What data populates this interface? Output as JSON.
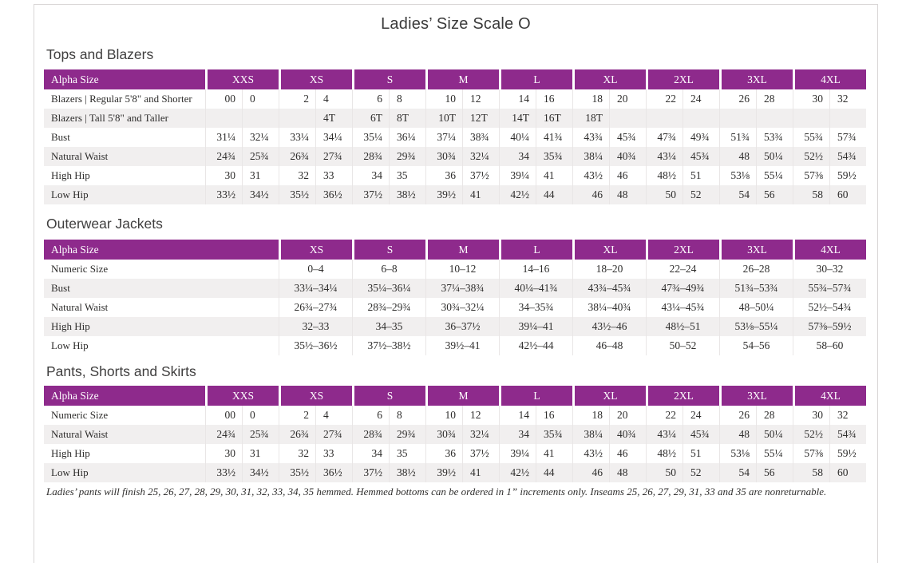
{
  "page_title": "Ladies’ Size Scale O",
  "colors": {
    "accent_purple": "#8e2a8c",
    "row_alt_gray": "#f1efef",
    "page_border_gray": "#d9d6d6"
  },
  "footnote": "Ladies’ pants will finish 25, 26, 27, 28, 29, 30, 31, 32, 33, 34, 35 hemmed. Hemmed bottoms can be ordered in 1” increments only. Inseams 25, 26, 27, 29, 31, 33 and 35 are nonreturnable.",
  "tables": [
    {
      "name": "tops-and-blazers",
      "section_title": "Tops and Blazers",
      "split_columns": true,
      "header": {
        "label": "Alpha Size",
        "groups": [
          "XXS",
          "XS",
          "S",
          "M",
          "L",
          "XL",
          "2XL",
          "3XL",
          "4XL"
        ]
      },
      "rows": [
        {
          "label": "Blazers  |  Regular 5'8\" and Shorter",
          "values": [
            "00",
            "0",
            "2",
            "4",
            "6",
            "8",
            "10",
            "12",
            "14",
            "16",
            "18",
            "20",
            "22",
            "24",
            "26",
            "28",
            "30",
            "32"
          ]
        },
        {
          "label": "Blazers  |  Tall 5'8\" and Taller",
          "values": [
            "",
            "",
            "",
            "4T",
            "6T",
            "8T",
            "10T",
            "12T",
            "14T",
            "16T",
            "18T",
            "",
            "",
            "",
            "",
            "",
            "",
            ""
          ]
        },
        {
          "label": "Bust",
          "values": [
            "31¼",
            "32¼",
            "33¼",
            "34¼",
            "35¼",
            "36¼",
            "37¼",
            "38¾",
            "40¼",
            "41¾",
            "43¾",
            "45¾",
            "47¾",
            "49¾",
            "51¾",
            "53¾",
            "55¾",
            "57¾"
          ]
        },
        {
          "label": "Natural Waist",
          "values": [
            "24¾",
            "25¾",
            "26¾",
            "27¾",
            "28¾",
            "29¾",
            "30¾",
            "32¼",
            "34",
            "35¾",
            "38¼",
            "40¾",
            "43¼",
            "45¾",
            "48",
            "50¼",
            "52½",
            "54¾"
          ]
        },
        {
          "label": "High Hip",
          "values": [
            "30",
            "31",
            "32",
            "33",
            "34",
            "35",
            "36",
            "37½",
            "39¼",
            "41",
            "43½",
            "46",
            "48½",
            "51",
            "53⅛",
            "55¼",
            "57⅜",
            "59½"
          ]
        },
        {
          "label": "Low Hip",
          "values": [
            "33½",
            "34½",
            "35½",
            "36½",
            "37½",
            "38½",
            "39½",
            "41",
            "42½",
            "44",
            "46",
            "48",
            "50",
            "52",
            "54",
            "56",
            "58",
            "60"
          ]
        }
      ]
    },
    {
      "name": "outerwear-jackets",
      "section_title": "Outerwear Jackets",
      "split_columns": false,
      "header": {
        "label": "Alpha Size",
        "groups": [
          "XS",
          "S",
          "M",
          "L",
          "XL",
          "2XL",
          "3XL",
          "4XL"
        ]
      },
      "rows": [
        {
          "label": "Numeric Size",
          "values": [
            "0–4",
            "6–8",
            "10–12",
            "14–16",
            "18–20",
            "22–24",
            "26–28",
            "30–32"
          ]
        },
        {
          "label": "Bust",
          "values": [
            "33¼–34¼",
            "35¼–36¼",
            "37¼–38¾",
            "40¼–41¾",
            "43¾–45¾",
            "47¾–49¾",
            "51¾–53¾",
            "55¾–57¾"
          ]
        },
        {
          "label": "Natural Waist",
          "values": [
            "26¾–27¾",
            "28¾–29¾",
            "30¾–32¼",
            "34–35¾",
            "38¼–40¾",
            "43¼–45¾",
            "48–50¼",
            "52½–54¾"
          ]
        },
        {
          "label": "High Hip",
          "values": [
            "32–33",
            "34–35",
            "36–37½",
            "39¼–41",
            "43½–46",
            "48½–51",
            "53⅛–55¼",
            "57⅜–59½"
          ]
        },
        {
          "label": "Low Hip",
          "values": [
            "35½–36½",
            "37½–38½",
            "39½–41",
            "42½–44",
            "46–48",
            "50–52",
            "54–56",
            "58–60"
          ]
        }
      ]
    },
    {
      "name": "pants-shorts-and-skirts",
      "section_title": "Pants, Shorts and Skirts",
      "split_columns": true,
      "header": {
        "label": "Alpha Size",
        "groups": [
          "XXS",
          "XS",
          "S",
          "M",
          "L",
          "XL",
          "2XL",
          "3XL",
          "4XL"
        ]
      },
      "rows": [
        {
          "label": "Numeric Size",
          "values": [
            "00",
            "0",
            "2",
            "4",
            "6",
            "8",
            "10",
            "12",
            "14",
            "16",
            "18",
            "20",
            "22",
            "24",
            "26",
            "28",
            "30",
            "32"
          ]
        },
        {
          "label": "Natural Waist",
          "values": [
            "24¾",
            "25¾",
            "26¾",
            "27¾",
            "28¾",
            "29¾",
            "30¾",
            "32¼",
            "34",
            "35¾",
            "38¼",
            "40¾",
            "43¼",
            "45¾",
            "48",
            "50¼",
            "52½",
            "54¾"
          ]
        },
        {
          "label": "High Hip",
          "values": [
            "30",
            "31",
            "32",
            "33",
            "34",
            "35",
            "36",
            "37½",
            "39¼",
            "41",
            "43½",
            "46",
            "48½",
            "51",
            "53⅛",
            "55¼",
            "57⅜",
            "59½"
          ]
        },
        {
          "label": "Low Hip",
          "values": [
            "33½",
            "34½",
            "35½",
            "36½",
            "37½",
            "38½",
            "39½",
            "41",
            "42½",
            "44",
            "46",
            "48",
            "50",
            "52",
            "54",
            "56",
            "58",
            "60"
          ]
        }
      ]
    }
  ]
}
